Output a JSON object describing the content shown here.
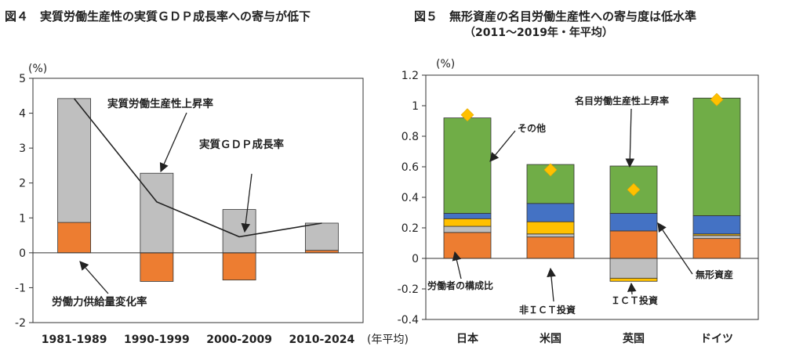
{
  "chart_data": [
    {
      "type": "bar",
      "title": "図４　実質労働生産性の実質ＧＤＰ成長率への寄与が低下",
      "ylabel": "(%)",
      "xlabel": "",
      "x_note": "(年平均)",
      "ylim": [
        -2,
        5
      ],
      "yticks": [
        -2,
        -1,
        0,
        1,
        2,
        3,
        4,
        5
      ],
      "categories": [
        "1981-1989",
        "1990-1999",
        "2000-2009",
        "2010-2024"
      ],
      "stacked": true,
      "series": [
        {
          "name": "労働力供給量変化率",
          "values": [
            0.87,
            -0.82,
            -0.78,
            0.07
          ],
          "color": "#ed7d31"
        },
        {
          "name": "実質労働生産性上昇率",
          "values": [
            3.55,
            2.28,
            1.24,
            0.78
          ],
          "color": "#bfbfbf"
        }
      ],
      "line": {
        "name": "実質ＧＤＰ成長率",
        "values": [
          4.42,
          1.46,
          0.46,
          0.85
        ],
        "color": "#222222"
      },
      "annotations": [
        "実質労働生産性上昇率",
        "実質ＧＤＰ成長率",
        "労働力供給量変化率"
      ]
    },
    {
      "type": "bar",
      "title": "図５　無形資産の名目労働生産性への寄与度は低水準",
      "subtitle": "（2011～2019年・年平均）",
      "ylabel": "(%)",
      "xlabel": "",
      "ylim": [
        -0.4,
        1.2
      ],
      "yticks": [
        "-0.4",
        "-0.2",
        "0",
        "0.2",
        "0.4",
        "0.6",
        "0.8",
        "1",
        "1.2"
      ],
      "categories": [
        "日本",
        "米国",
        "英国",
        "ドイツ"
      ],
      "stacked": true,
      "series": [
        {
          "name": "労働者の構成比",
          "values": [
            0.17,
            0.14,
            0.18,
            0.13
          ],
          "color": "#ed7d31"
        },
        {
          "name": "非ＩＣＴ投資",
          "values": [
            0.04,
            0.02,
            -0.13,
            0.02
          ],
          "color": "#bfbfbf"
        },
        {
          "name": "ＩＣＴ投資",
          "values": [
            0.05,
            0.08,
            -0.02,
            0.01
          ],
          "color": "#ffc000"
        },
        {
          "name": "無形資産",
          "values": [
            0.035,
            0.12,
            0.115,
            0.12
          ],
          "color": "#4472c4"
        },
        {
          "name": "その他",
          "values": [
            0.625,
            0.255,
            0.31,
            0.77
          ],
          "color": "#70ad47"
        }
      ],
      "marker": {
        "name": "名目労働生産性上昇率",
        "values": [
          0.94,
          0.58,
          0.45,
          1.04
        ],
        "color": "#ffc000"
      },
      "annotations": [
        "その他",
        "名目労働生産性上昇率",
        "無形資産",
        "ＩＣＴ投資",
        "非ＩＣＴ投資",
        "労働者の構成比"
      ]
    }
  ]
}
